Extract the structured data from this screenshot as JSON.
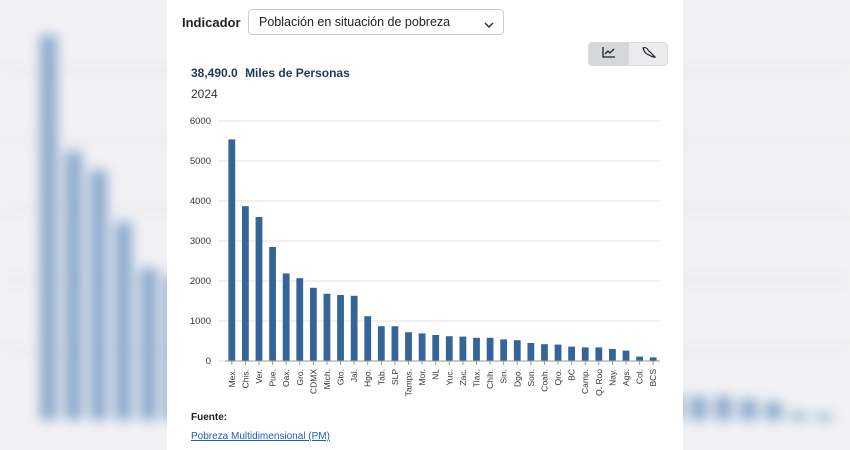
{
  "indicator": {
    "label": "Indicador",
    "selected": "Población en situación de pobreza"
  },
  "view_buttons": [
    {
      "icon": "line-chart-icon",
      "active": true
    },
    {
      "icon": "map-icon",
      "active": false
    }
  ],
  "summary": {
    "total": "38,490.0",
    "unit": "Miles de Personas",
    "year": "2024"
  },
  "colors": {
    "bar": "#356596",
    "grid": "#e3e3e3",
    "bg_bar": "#8aa9cc"
  },
  "chart_data": {
    "type": "bar",
    "categories": [
      "Mex.",
      "Chis.",
      "Ver.",
      "Pue.",
      "Oax.",
      "Gro.",
      "CDMX",
      "Mich.",
      "Gto.",
      "Jal.",
      "Hgo.",
      "Tab.",
      "SLP",
      "Tamps.",
      "Mor.",
      "NL",
      "Yuc.",
      "Zac.",
      "Tlax.",
      "Chih.",
      "Sin.",
      "Dgo.",
      "Son.",
      "Coah.",
      "Qro.",
      "BC",
      "Camp.",
      "Q. Roo",
      "Nay.",
      "Ags.",
      "Col.",
      "BCS"
    ],
    "values": [
      5540,
      3870,
      3600,
      2850,
      2190,
      2070,
      1830,
      1680,
      1650,
      1630,
      1120,
      870,
      870,
      720,
      690,
      650,
      620,
      610,
      580,
      580,
      540,
      520,
      450,
      420,
      410,
      360,
      340,
      340,
      300,
      260,
      110,
      90
    ],
    "yticks": [
      0,
      1000,
      2000,
      3000,
      4000,
      5000,
      6000
    ],
    "ylim": [
      0,
      6000
    ],
    "grid": true
  },
  "source": {
    "label": "Fuente:",
    "link": "Pobreza Multidimensional (PM)"
  }
}
